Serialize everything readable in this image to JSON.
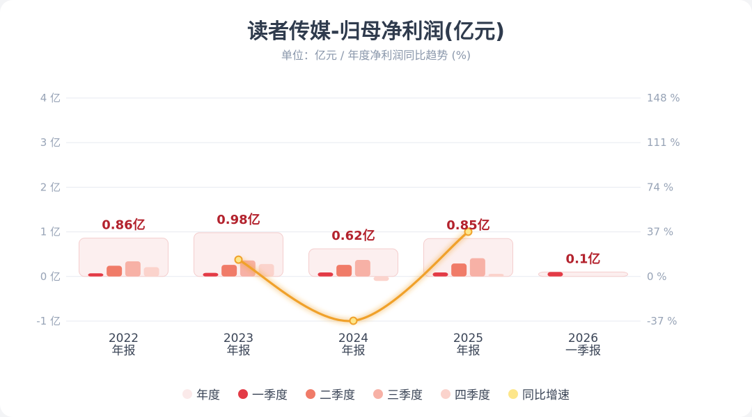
{
  "title": "读者传媒-归母净利润(亿元)",
  "subtitle": "单位：亿元 / 年度净利润同比趋势 (%)",
  "colors": {
    "annual": "#fbeaea",
    "q1": "#e33b46",
    "q2": "#f07b68",
    "q3": "#f7b1a6",
    "q4": "#fbd3cc",
    "yoy": "#f0a12a",
    "yoy_marker": "#fde68a",
    "total_label": "#b3222d"
  },
  "legend": [
    {
      "label": "年度",
      "color_key": "annual"
    },
    {
      "label": "一季度",
      "color_key": "q1"
    },
    {
      "label": "二季度",
      "color_key": "q2"
    },
    {
      "label": "三季度",
      "color_key": "q3"
    },
    {
      "label": "四季度",
      "color_key": "q4"
    },
    {
      "label": "同比增速",
      "color_key": "yoy_marker"
    }
  ],
  "chart_data": {
    "type": "bar",
    "categories": [
      {
        "year": "2022",
        "period": "年报"
      },
      {
        "year": "2023",
        "period": "年报"
      },
      {
        "year": "2024",
        "period": "年报"
      },
      {
        "year": "2025",
        "period": "年报"
      },
      {
        "year": "2026",
        "period": "一季报"
      }
    ],
    "annual_totals": [
      0.86,
      0.98,
      0.62,
      0.85,
      0.1
    ],
    "annual_labels": [
      "0.86亿",
      "0.98亿",
      "0.62亿",
      "0.85亿",
      "0.1亿"
    ],
    "series": [
      {
        "name": "一季度",
        "values": [
          0.07,
          0.08,
          0.09,
          0.09,
          0.1
        ]
      },
      {
        "name": "二季度",
        "values": [
          0.24,
          0.26,
          0.26,
          0.29,
          null
        ]
      },
      {
        "name": "三季度",
        "values": [
          0.34,
          0.36,
          0.37,
          0.41,
          null
        ]
      },
      {
        "name": "四季度",
        "values": [
          0.21,
          0.28,
          -0.1,
          0.06,
          null
        ]
      }
    ],
    "yoy": {
      "name": "同比增速",
      "values": [
        null,
        13.95,
        -36.73,
        37.1,
        null
      ]
    },
    "y_left": {
      "min": -1,
      "max": 4,
      "ticks": [
        -1,
        0,
        1,
        2,
        3,
        4
      ],
      "tick_labels": [
        "-1 亿",
        "0 亿",
        "1 亿",
        "2 亿",
        "3 亿",
        "4 亿"
      ]
    },
    "y_right": {
      "min": -37,
      "max": 148,
      "ticks": [
        -37,
        0,
        37,
        74,
        111,
        148
      ],
      "tick_labels": [
        "-37 %",
        "0 %",
        "37 %",
        "74 %",
        "111 %",
        "148 %"
      ]
    },
    "grid": true,
    "legend_position": "bottom"
  }
}
